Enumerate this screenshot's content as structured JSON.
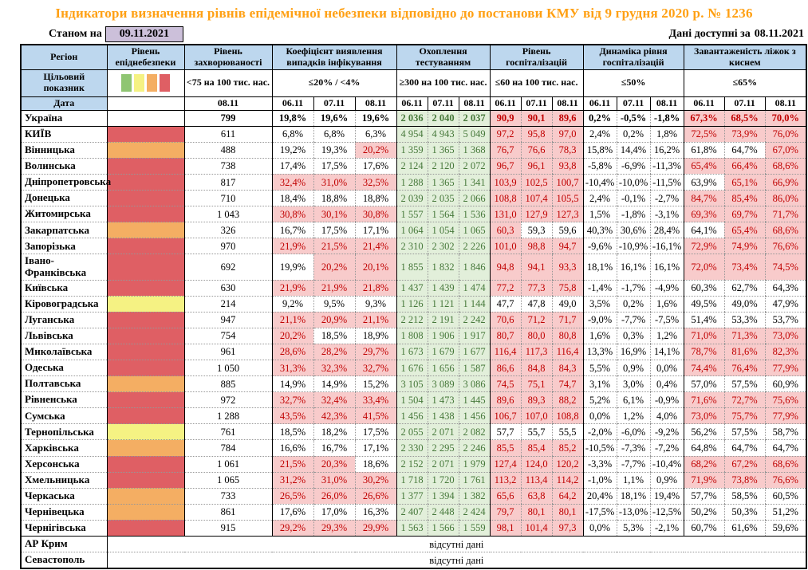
{
  "title": "Індикатори визначення рівнів епідемічної небезпеки відповідно до постанови КМУ від 9 грудня 2020 р. № 1236",
  "as_of": {
    "label": "Станом на",
    "date": "09.11.2021"
  },
  "available": {
    "label": "Дані доступні за",
    "date": "08.11.2021"
  },
  "columns": {
    "region": "Регіон",
    "danger_level": "Рівень епіднебезпеки",
    "target_row_label": "Цільовий показник",
    "date_row_label": "Дата",
    "groups": [
      {
        "label": "Рівень захворюваності",
        "target": "<75 на 100 тис. нас.",
        "dates": [
          "08.11"
        ]
      },
      {
        "label": "Коефіцієнт виявлення випадків інфікування",
        "target": "≤20% / <4%",
        "dates": [
          "06.11",
          "07.11",
          "08.11"
        ]
      },
      {
        "label": "Охоплення тестуванням",
        "target": "≥300 на 100 тис. нас.",
        "dates": [
          "06.11",
          "07.11",
          "08.11"
        ]
      },
      {
        "label": "Рівень госпіталізацій",
        "target": "≤60 на 100 тис. нас.",
        "dates": [
          "06.11",
          "07.11",
          "08.11"
        ]
      },
      {
        "label": "Динаміка рівня госпіталізацій",
        "target": "≤50%",
        "dates": [
          "06.11",
          "07.11",
          "08.11"
        ]
      },
      {
        "label": "Завантаженість ліжок з киснем",
        "target": "≤65%",
        "dates": [
          "06.11",
          "07.11",
          "08.11"
        ]
      }
    ]
  },
  "colors": {
    "header_blue": "#BDD7EE",
    "date_box_purple": "#CCC0DA",
    "title_orange": "#FFA013",
    "green_bg": "#E2EFDA",
    "green_text": "#46783A",
    "pink_bg": "#F8CBCB",
    "red_text": "#C00000"
  },
  "danger_colors": {
    "red": "#DF5F64",
    "orange": "#F4AE63",
    "yellow": "#F5F283",
    "green": "#8FC572"
  },
  "legend_colors": [
    "#8FC572",
    "#F5F283",
    "#F4AE63",
    "#DF5F64"
  ],
  "rows": [
    {
      "region": "Україна",
      "bold": true,
      "danger": "none",
      "incidence": "799",
      "detect": [
        "19,8%",
        "19,6%",
        "19,6%"
      ],
      "detect_hl": [
        0,
        0,
        0
      ],
      "test": [
        "2 036",
        "2 040",
        "2 037"
      ],
      "hosp": [
        "90,9",
        "90,1",
        "89,6"
      ],
      "hosp_hl": [
        1,
        1,
        1
      ],
      "dyn": [
        "0,2%",
        "-0,5%",
        "-1,8%"
      ],
      "beds": [
        "67,3%",
        "68,5%",
        "70,0%"
      ],
      "beds_hl": [
        1,
        1,
        1
      ]
    },
    {
      "region": "КИЇВ",
      "sep": true,
      "danger": "red",
      "incidence": "611",
      "detect": [
        "6,8%",
        "6,8%",
        "6,3%"
      ],
      "detect_hl": [
        0,
        0,
        0
      ],
      "test": [
        "4 954",
        "4 943",
        "5 049"
      ],
      "hosp": [
        "97,2",
        "95,8",
        "97,0"
      ],
      "hosp_hl": [
        1,
        1,
        1
      ],
      "dyn": [
        "2,4%",
        "0,2%",
        "1,8%"
      ],
      "beds": [
        "72,5%",
        "73,9%",
        "76,0%"
      ],
      "beds_hl": [
        1,
        1,
        1
      ]
    },
    {
      "region": "Вінницька",
      "danger": "orange",
      "incidence": "488",
      "detect": [
        "19,2%",
        "19,3%",
        "20,2%"
      ],
      "detect_hl": [
        0,
        0,
        1
      ],
      "test": [
        "1 359",
        "1 365",
        "1 368"
      ],
      "hosp": [
        "76,7",
        "76,6",
        "78,3"
      ],
      "hosp_hl": [
        1,
        1,
        1
      ],
      "dyn": [
        "15,8%",
        "14,4%",
        "16,2%"
      ],
      "beds": [
        "61,8%",
        "64,7%",
        "67,0%"
      ],
      "beds_hl": [
        0,
        0,
        1
      ]
    },
    {
      "region": "Волинська",
      "danger": "red",
      "incidence": "738",
      "detect": [
        "17,4%",
        "17,5%",
        "17,6%"
      ],
      "detect_hl": [
        0,
        0,
        0
      ],
      "test": [
        "2 124",
        "2 120",
        "2 072"
      ],
      "hosp": [
        "96,7",
        "96,1",
        "93,8"
      ],
      "hosp_hl": [
        1,
        1,
        1
      ],
      "dyn": [
        "-5,8%",
        "-6,9%",
        "-11,3%"
      ],
      "beds": [
        "65,4%",
        "66,4%",
        "68,6%"
      ],
      "beds_hl": [
        1,
        1,
        1
      ]
    },
    {
      "region": "Дніпропетровська",
      "danger": "red",
      "incidence": "817",
      "detect": [
        "32,4%",
        "31,0%",
        "32,5%"
      ],
      "detect_hl": [
        1,
        1,
        1
      ],
      "test": [
        "1 288",
        "1 365",
        "1 341"
      ],
      "hosp": [
        "103,9",
        "102,5",
        "100,7"
      ],
      "hosp_hl": [
        1,
        1,
        1
      ],
      "dyn": [
        "-10,4%",
        "-10,0%",
        "-11,5%"
      ],
      "beds": [
        "63,9%",
        "65,1%",
        "66,9%"
      ],
      "beds_hl": [
        0,
        1,
        1
      ]
    },
    {
      "region": "Донецька",
      "danger": "red",
      "incidence": "710",
      "detect": [
        "18,4%",
        "18,8%",
        "18,8%"
      ],
      "detect_hl": [
        0,
        0,
        0
      ],
      "test": [
        "2 039",
        "2 035",
        "2 066"
      ],
      "hosp": [
        "108,8",
        "107,4",
        "105,5"
      ],
      "hosp_hl": [
        1,
        1,
        1
      ],
      "dyn": [
        "2,4%",
        "-0,1%",
        "-2,7%"
      ],
      "beds": [
        "84,7%",
        "85,4%",
        "86,0%"
      ],
      "beds_hl": [
        1,
        1,
        1
      ]
    },
    {
      "region": "Житомирська",
      "danger": "red",
      "incidence": "1 043",
      "detect": [
        "30,8%",
        "30,1%",
        "30,8%"
      ],
      "detect_hl": [
        1,
        1,
        1
      ],
      "test": [
        "1 557",
        "1 564",
        "1 536"
      ],
      "hosp": [
        "131,0",
        "127,9",
        "127,3"
      ],
      "hosp_hl": [
        1,
        1,
        1
      ],
      "dyn": [
        "1,5%",
        "-1,8%",
        "-3,1%"
      ],
      "beds": [
        "69,3%",
        "69,7%",
        "71,7%"
      ],
      "beds_hl": [
        1,
        1,
        1
      ]
    },
    {
      "region": "Закарпатська",
      "danger": "orange",
      "incidence": "326",
      "detect": [
        "16,7%",
        "17,5%",
        "17,1%"
      ],
      "detect_hl": [
        0,
        0,
        0
      ],
      "test": [
        "1 064",
        "1 054",
        "1 065"
      ],
      "hosp": [
        "60,3",
        "59,3",
        "59,6"
      ],
      "hosp_hl": [
        1,
        0,
        0
      ],
      "dyn": [
        "40,3%",
        "30,6%",
        "28,4%"
      ],
      "beds": [
        "64,1%",
        "65,4%",
        "68,6%"
      ],
      "beds_hl": [
        0,
        1,
        1
      ]
    },
    {
      "region": "Запорізька",
      "danger": "red",
      "incidence": "970",
      "detect": [
        "21,9%",
        "21,5%",
        "21,4%"
      ],
      "detect_hl": [
        1,
        1,
        1
      ],
      "test": [
        "2 310",
        "2 302",
        "2 226"
      ],
      "hosp": [
        "101,0",
        "98,8",
        "94,7"
      ],
      "hosp_hl": [
        1,
        1,
        1
      ],
      "dyn": [
        "-9,6%",
        "-10,9%",
        "-16,1%"
      ],
      "beds": [
        "72,9%",
        "74,9%",
        "76,6%"
      ],
      "beds_hl": [
        1,
        1,
        1
      ]
    },
    {
      "region": "Івано-Франківська",
      "danger": "red",
      "incidence": "692",
      "detect": [
        "19,9%",
        "20,2%",
        "20,1%"
      ],
      "detect_hl": [
        0,
        1,
        1
      ],
      "test": [
        "1 855",
        "1 832",
        "1 846"
      ],
      "hosp": [
        "94,8",
        "94,1",
        "93,3"
      ],
      "hosp_hl": [
        1,
        1,
        1
      ],
      "dyn": [
        "18,1%",
        "16,1%",
        "16,1%"
      ],
      "beds": [
        "72,0%",
        "73,4%",
        "74,5%"
      ],
      "beds_hl": [
        1,
        1,
        1
      ]
    },
    {
      "region": "Київська",
      "danger": "red",
      "incidence": "630",
      "detect": [
        "21,9%",
        "21,9%",
        "21,8%"
      ],
      "detect_hl": [
        1,
        1,
        1
      ],
      "test": [
        "1 437",
        "1 439",
        "1 474"
      ],
      "hosp": [
        "77,2",
        "77,3",
        "75,8"
      ],
      "hosp_hl": [
        1,
        1,
        1
      ],
      "dyn": [
        "-1,4%",
        "-1,7%",
        "-4,9%"
      ],
      "beds": [
        "60,3%",
        "62,7%",
        "64,3%"
      ],
      "beds_hl": [
        0,
        0,
        0
      ]
    },
    {
      "region": "Кіровоградська",
      "danger": "yellow",
      "incidence": "214",
      "detect": [
        "9,2%",
        "9,5%",
        "9,3%"
      ],
      "detect_hl": [
        0,
        0,
        0
      ],
      "test": [
        "1 126",
        "1 121",
        "1 144"
      ],
      "hosp": [
        "47,7",
        "47,8",
        "49,0"
      ],
      "hosp_hl": [
        0,
        0,
        0
      ],
      "dyn": [
        "3,5%",
        "0,2%",
        "1,6%"
      ],
      "beds": [
        "49,5%",
        "49,0%",
        "47,9%"
      ],
      "beds_hl": [
        0,
        0,
        0
      ]
    },
    {
      "region": "Луганська",
      "danger": "red",
      "incidence": "947",
      "detect": [
        "21,1%",
        "20,9%",
        "21,1%"
      ],
      "detect_hl": [
        1,
        1,
        1
      ],
      "test": [
        "2 212",
        "2 191",
        "2 242"
      ],
      "hosp": [
        "70,6",
        "71,2",
        "71,7"
      ],
      "hosp_hl": [
        1,
        1,
        1
      ],
      "dyn": [
        "-9,0%",
        "-7,7%",
        "-7,5%"
      ],
      "beds": [
        "51,4%",
        "53,3%",
        "53,7%"
      ],
      "beds_hl": [
        0,
        0,
        0
      ]
    },
    {
      "region": "Львівська",
      "danger": "red",
      "incidence": "754",
      "detect": [
        "20,2%",
        "18,5%",
        "18,9%"
      ],
      "detect_hl": [
        1,
        0,
        0
      ],
      "test": [
        "1 808",
        "1 906",
        "1 917"
      ],
      "hosp": [
        "80,7",
        "80,0",
        "80,8"
      ],
      "hosp_hl": [
        1,
        1,
        1
      ],
      "dyn": [
        "1,6%",
        "0,3%",
        "1,2%"
      ],
      "beds": [
        "71,0%",
        "71,3%",
        "73,0%"
      ],
      "beds_hl": [
        1,
        1,
        1
      ]
    },
    {
      "region": "Миколаївська",
      "danger": "red",
      "incidence": "961",
      "detect": [
        "28,6%",
        "28,2%",
        "29,7%"
      ],
      "detect_hl": [
        1,
        1,
        1
      ],
      "test": [
        "1 673",
        "1 679",
        "1 677"
      ],
      "hosp": [
        "116,4",
        "117,3",
        "116,4"
      ],
      "hosp_hl": [
        1,
        1,
        1
      ],
      "dyn": [
        "13,3%",
        "16,9%",
        "14,1%"
      ],
      "beds": [
        "78,7%",
        "81,6%",
        "82,3%"
      ],
      "beds_hl": [
        1,
        1,
        1
      ]
    },
    {
      "region": "Одеська",
      "danger": "red",
      "incidence": "1 050",
      "detect": [
        "31,3%",
        "32,3%",
        "32,7%"
      ],
      "detect_hl": [
        1,
        1,
        1
      ],
      "test": [
        "1 676",
        "1 656",
        "1 587"
      ],
      "hosp": [
        "86,6",
        "84,8",
        "84,3"
      ],
      "hosp_hl": [
        1,
        1,
        1
      ],
      "dyn": [
        "5,5%",
        "0,9%",
        "0,0%"
      ],
      "beds": [
        "74,4%",
        "76,4%",
        "77,9%"
      ],
      "beds_hl": [
        1,
        1,
        1
      ]
    },
    {
      "region": "Полтавська",
      "danger": "orange",
      "incidence": "885",
      "detect": [
        "14,9%",
        "14,9%",
        "15,2%"
      ],
      "detect_hl": [
        0,
        0,
        0
      ],
      "test": [
        "3 105",
        "3 089",
        "3 086"
      ],
      "hosp": [
        "74,5",
        "75,1",
        "74,7"
      ],
      "hosp_hl": [
        1,
        1,
        1
      ],
      "dyn": [
        "3,1%",
        "3,0%",
        "0,4%"
      ],
      "beds": [
        "57,0%",
        "57,5%",
        "60,9%"
      ],
      "beds_hl": [
        0,
        0,
        0
      ]
    },
    {
      "region": "Рівненська",
      "danger": "red",
      "incidence": "972",
      "detect": [
        "32,7%",
        "32,4%",
        "33,4%"
      ],
      "detect_hl": [
        1,
        1,
        1
      ],
      "test": [
        "1 504",
        "1 473",
        "1 445"
      ],
      "hosp": [
        "89,6",
        "89,3",
        "88,2"
      ],
      "hosp_hl": [
        1,
        1,
        1
      ],
      "dyn": [
        "5,2%",
        "6,1%",
        "-0,9%"
      ],
      "beds": [
        "71,6%",
        "72,7%",
        "75,6%"
      ],
      "beds_hl": [
        1,
        1,
        1
      ]
    },
    {
      "region": "Сумська",
      "danger": "red",
      "incidence": "1 288",
      "detect": [
        "43,5%",
        "42,3%",
        "41,5%"
      ],
      "detect_hl": [
        1,
        1,
        1
      ],
      "test": [
        "1 456",
        "1 438",
        "1 456"
      ],
      "hosp": [
        "106,7",
        "107,0",
        "108,8"
      ],
      "hosp_hl": [
        1,
        1,
        1
      ],
      "dyn": [
        "0,0%",
        "1,2%",
        "4,0%"
      ],
      "beds": [
        "73,0%",
        "75,7%",
        "77,9%"
      ],
      "beds_hl": [
        1,
        1,
        1
      ]
    },
    {
      "region": "Тернопільська",
      "danger": "yellow",
      "incidence": "761",
      "detect": [
        "18,5%",
        "18,2%",
        "17,5%"
      ],
      "detect_hl": [
        0,
        0,
        0
      ],
      "test": [
        "2 055",
        "2 071",
        "2 082"
      ],
      "hosp": [
        "57,7",
        "55,7",
        "55,5"
      ],
      "hosp_hl": [
        0,
        0,
        0
      ],
      "dyn": [
        "-2,0%",
        "-6,0%",
        "-9,2%"
      ],
      "beds": [
        "56,2%",
        "57,5%",
        "58,7%"
      ],
      "beds_hl": [
        0,
        0,
        0
      ]
    },
    {
      "region": "Харківська",
      "danger": "orange",
      "incidence": "784",
      "detect": [
        "16,6%",
        "16,7%",
        "17,1%"
      ],
      "detect_hl": [
        0,
        0,
        0
      ],
      "test": [
        "2 330",
        "2 295",
        "2 246"
      ],
      "hosp": [
        "85,5",
        "85,4",
        "85,2"
      ],
      "hosp_hl": [
        1,
        1,
        1
      ],
      "dyn": [
        "-10,5%",
        "-7,3%",
        "-7,2%"
      ],
      "beds": [
        "64,8%",
        "64,7%",
        "64,7%"
      ],
      "beds_hl": [
        0,
        0,
        0
      ]
    },
    {
      "region": "Херсонська",
      "danger": "red",
      "incidence": "1 061",
      "detect": [
        "21,5%",
        "20,3%",
        "18,6%"
      ],
      "detect_hl": [
        1,
        1,
        0
      ],
      "test": [
        "2 152",
        "2 071",
        "1 979"
      ],
      "hosp": [
        "127,4",
        "124,0",
        "120,2"
      ],
      "hosp_hl": [
        1,
        1,
        1
      ],
      "dyn": [
        "-3,3%",
        "-7,7%",
        "-10,4%"
      ],
      "beds": [
        "68,2%",
        "67,2%",
        "68,6%"
      ],
      "beds_hl": [
        1,
        1,
        1
      ]
    },
    {
      "region": "Хмельницька",
      "danger": "red",
      "incidence": "1 065",
      "detect": [
        "31,2%",
        "31,0%",
        "30,2%"
      ],
      "detect_hl": [
        1,
        1,
        1
      ],
      "test": [
        "1 718",
        "1 720",
        "1 761"
      ],
      "hosp": [
        "113,2",
        "113,4",
        "114,2"
      ],
      "hosp_hl": [
        1,
        1,
        1
      ],
      "dyn": [
        "-1,0%",
        "1,1%",
        "0,9%"
      ],
      "beds": [
        "71,9%",
        "73,8%",
        "76,6%"
      ],
      "beds_hl": [
        1,
        1,
        1
      ]
    },
    {
      "region": "Черкаська",
      "danger": "orange",
      "incidence": "733",
      "detect": [
        "26,5%",
        "26,0%",
        "26,6%"
      ],
      "detect_hl": [
        1,
        1,
        1
      ],
      "test": [
        "1 377",
        "1 394",
        "1 382"
      ],
      "hosp": [
        "65,6",
        "63,8",
        "64,2"
      ],
      "hosp_hl": [
        1,
        1,
        1
      ],
      "dyn": [
        "20,4%",
        "18,1%",
        "19,4%"
      ],
      "beds": [
        "57,7%",
        "58,5%",
        "60,5%"
      ],
      "beds_hl": [
        0,
        0,
        0
      ]
    },
    {
      "region": "Чернівецька",
      "danger": "orange",
      "incidence": "861",
      "detect": [
        "17,6%",
        "17,0%",
        "16,3%"
      ],
      "detect_hl": [
        0,
        0,
        0
      ],
      "test": [
        "2 407",
        "2 448",
        "2 424"
      ],
      "hosp": [
        "79,7",
        "80,1",
        "80,1"
      ],
      "hosp_hl": [
        1,
        1,
        1
      ],
      "dyn": [
        "-17,5%",
        "-13,0%",
        "-12,5%"
      ],
      "beds": [
        "50,2%",
        "50,3%",
        "51,2%"
      ],
      "beds_hl": [
        0,
        0,
        0
      ]
    },
    {
      "region": "Чернігівська",
      "danger": "red",
      "incidence": "915",
      "detect": [
        "29,2%",
        "29,3%",
        "29,9%"
      ],
      "detect_hl": [
        1,
        1,
        1
      ],
      "test": [
        "1 563",
        "1 566",
        "1 559"
      ],
      "hosp": [
        "98,1",
        "101,4",
        "97,3"
      ],
      "hosp_hl": [
        1,
        1,
        1
      ],
      "dyn": [
        "0,0%",
        "5,3%",
        "-2,1%"
      ],
      "beds": [
        "60,7%",
        "61,6%",
        "59,6%"
      ],
      "beds_hl": [
        0,
        0,
        0
      ]
    }
  ],
  "no_data_rows": [
    {
      "region": "АР Крим",
      "text": "відсутні дані"
    },
    {
      "region": "Севастополь",
      "text": "відсутні дані"
    }
  ]
}
